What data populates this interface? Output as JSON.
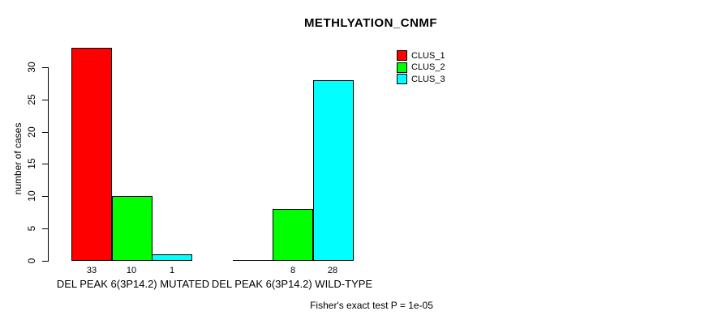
{
  "title": "METHLYATION_CNMF",
  "ylabel": "number of cases",
  "footer": "Fisher's exact test P = 1e-05",
  "colors": {
    "clus1": "#FF0000",
    "clus2": "#00FF00",
    "clus3": "#00FFFF",
    "axis": "#000000",
    "background": "#FFFFFF"
  },
  "legend": {
    "position": "top-right",
    "items": [
      {
        "label": "CLUS_1",
        "color": "#FF0000"
      },
      {
        "label": "CLUS_2",
        "color": "#00FF00"
      },
      {
        "label": "CLUS_3",
        "color": "#00FFFF"
      }
    ]
  },
  "chart_data": {
    "type": "bar",
    "title": "METHLYATION_CNMF",
    "xlabel": "",
    "ylabel": "number of cases",
    "ylim": [
      0,
      33
    ],
    "yticks": [
      0,
      5,
      10,
      15,
      20,
      25,
      30
    ],
    "grid": false,
    "legend_position": "top-right",
    "series": [
      {
        "name": "CLUS_1",
        "color": "#FF0000",
        "values": [
          33,
          0
        ]
      },
      {
        "name": "CLUS_2",
        "color": "#00FF00",
        "values": [
          10,
          8
        ]
      },
      {
        "name": "CLUS_3",
        "color": "#00FFFF",
        "values": [
          1,
          28
        ]
      }
    ],
    "groups": [
      {
        "label": "DEL PEAK 6(3P14.2) MUTATED",
        "values": [
          33,
          10,
          1
        ]
      },
      {
        "label": "DEL PEAK 6(3P14.2) WILD-TYPE",
        "values": [
          0,
          8,
          28
        ]
      }
    ],
    "bar_value_labels": [
      [
        "33",
        "10",
        "1"
      ],
      [
        "",
        "8",
        "28"
      ]
    ],
    "annotation": "Fisher's exact test P = 1e-05"
  }
}
